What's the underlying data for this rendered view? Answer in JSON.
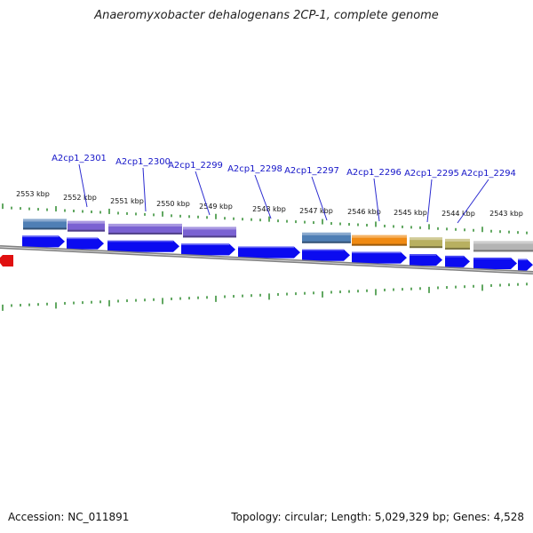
{
  "title": "Anaeromyxobacter dehalogenans 2CP-1, complete genome",
  "accession_label": "Accession: NC_011891",
  "topology_label": "Topology: circular; Length: 5,029,329 bp; Genes: 4,528",
  "kbp_ticks": [
    "2553 kbp",
    "2552 kbp",
    "2551 kbp",
    "2550 kbp",
    "2549 kbp",
    "2548 kbp",
    "2547 kbp",
    "2546 kbp",
    "2545 kbp",
    "2544 kbp",
    "2543 kbp"
  ],
  "gene_labels": [
    "A2cp1_2301",
    "A2cp1_2300",
    "A2cp1_2299",
    "A2cp1_2298",
    "A2cp1_2297",
    "A2cp1_2296",
    "A2cp1_2295",
    "A2cp1_2294"
  ],
  "colors": {
    "cds_arrow": "#0b0bf0",
    "backbone": "#808080",
    "tick": "#2e8b2e",
    "feature_blue": "#4f7fb5",
    "feature_purple": "#7a62d2",
    "feature_orange": "#f08a12",
    "feature_olive": "#b8b060",
    "feature_gray": "#b4b4b4",
    "marker_red": "#e01010",
    "label": "#1515c8"
  }
}
